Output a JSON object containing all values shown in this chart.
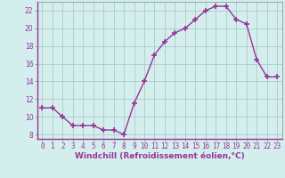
{
  "x": [
    0,
    1,
    2,
    3,
    4,
    5,
    6,
    7,
    8,
    9,
    10,
    11,
    12,
    13,
    14,
    15,
    16,
    17,
    18,
    19,
    20,
    21,
    22,
    23
  ],
  "y": [
    11,
    11,
    10,
    9,
    9,
    9,
    8.5,
    8.5,
    8,
    11.5,
    14,
    17,
    18.5,
    19.5,
    20,
    21,
    22,
    22.5,
    22.5,
    21,
    20.5,
    16.5,
    14.5,
    14.5
  ],
  "line_color": "#993399",
  "marker": "+",
  "marker_size": 4,
  "bg_color": "#d4eeed",
  "grid_color": "#aacccc",
  "xlabel": "Windchill (Refroidissement éolien,°C)",
  "xlabel_fontsize": 6.5,
  "ylim": [
    7.5,
    23
  ],
  "xlim": [
    -0.5,
    23.5
  ],
  "yticks": [
    8,
    10,
    12,
    14,
    16,
    18,
    20,
    22
  ],
  "xticks": [
    0,
    1,
    2,
    3,
    4,
    5,
    6,
    7,
    8,
    9,
    10,
    11,
    12,
    13,
    14,
    15,
    16,
    17,
    18,
    19,
    20,
    21,
    22,
    23
  ],
  "tick_fontsize": 5.5,
  "line_width": 1.0
}
